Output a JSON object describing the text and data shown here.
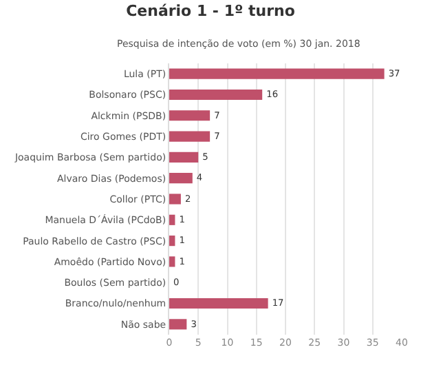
{
  "chart_data": {
    "type": "bar",
    "orientation": "horizontal",
    "title": "Cenário 1 - 1º turno",
    "subtitle": "Pesquisa de intenção de voto (em %) 30 jan. 2018",
    "categories": [
      "Lula (PT)",
      "Bolsonaro (PSC)",
      "Alckmin (PSDB)",
      "Ciro Gomes (PDT)",
      "Joaquim Barbosa (Sem partido)",
      "Alvaro Dias (Podemos)",
      "Collor (PTC)",
      "Manuela D´Ávila (PCdoB)",
      "Paulo Rabello de Castro (PSC)",
      "Amoêdo (Partido Novo)",
      "Boulos (Sem partido)",
      "Branco/nulo/nenhum",
      "Não sabe"
    ],
    "values": [
      37,
      16,
      7,
      7,
      5,
      4,
      2,
      1,
      1,
      1,
      0,
      17,
      3
    ],
    "color": "#c0506a",
    "data_labels": true,
    "xlim": [
      0,
      40
    ],
    "xticks": [
      0,
      5,
      10,
      15,
      20,
      25,
      30,
      35,
      40
    ],
    "grid": "x"
  }
}
